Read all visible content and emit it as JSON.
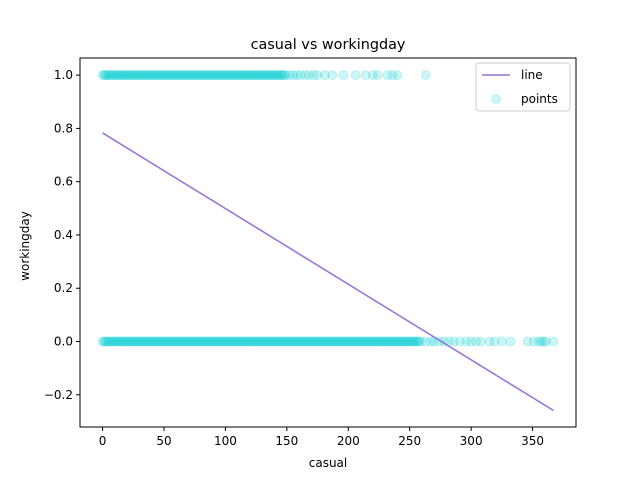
{
  "chart_data": {
    "type": "scatter",
    "title": "casual vs workingday",
    "xlabel": "casual",
    "ylabel": "workingday",
    "xlim": [
      -18.35,
      385.35
    ],
    "ylim": [
      -0.3209,
      1.0643
    ],
    "xticks": [
      0,
      50,
      100,
      150,
      200,
      250,
      300,
      350
    ],
    "yticks": [
      -0.2,
      0.0,
      0.2,
      0.4,
      0.6,
      0.8,
      1.0
    ],
    "ytick_labels": [
      "−0.2",
      "0.0",
      "0.2",
      "0.4",
      "0.6",
      "0.8",
      "1.0"
    ],
    "grid": false,
    "legend_position": "top-right",
    "series": [
      {
        "name": "line",
        "kind": "line",
        "color": "#9370db",
        "x": [
          0,
          367
        ],
        "y": [
          0.783,
          -0.259
        ]
      },
      {
        "name": "points",
        "kind": "scatter",
        "color": "#00ced1",
        "alpha": 0.2,
        "groups": [
          {
            "y": 1,
            "dense_x": [
              0,
              150
            ],
            "x": [
              152,
              155,
              158,
              161,
              165,
              168,
              172,
              175,
              181,
              187,
              196,
              206,
              214,
              220,
              224,
              232,
              236,
              240,
              263
            ]
          },
          {
            "y": 0,
            "dense_x": [
              0,
              260
            ],
            "x": [
              263,
              267,
              270,
              274,
              278,
              282,
              286,
              291,
              296,
              300,
              304,
              308,
              315,
              319,
              325,
              332,
              346,
              351,
              355,
              357,
              359,
              361,
              367
            ]
          }
        ]
      }
    ]
  }
}
